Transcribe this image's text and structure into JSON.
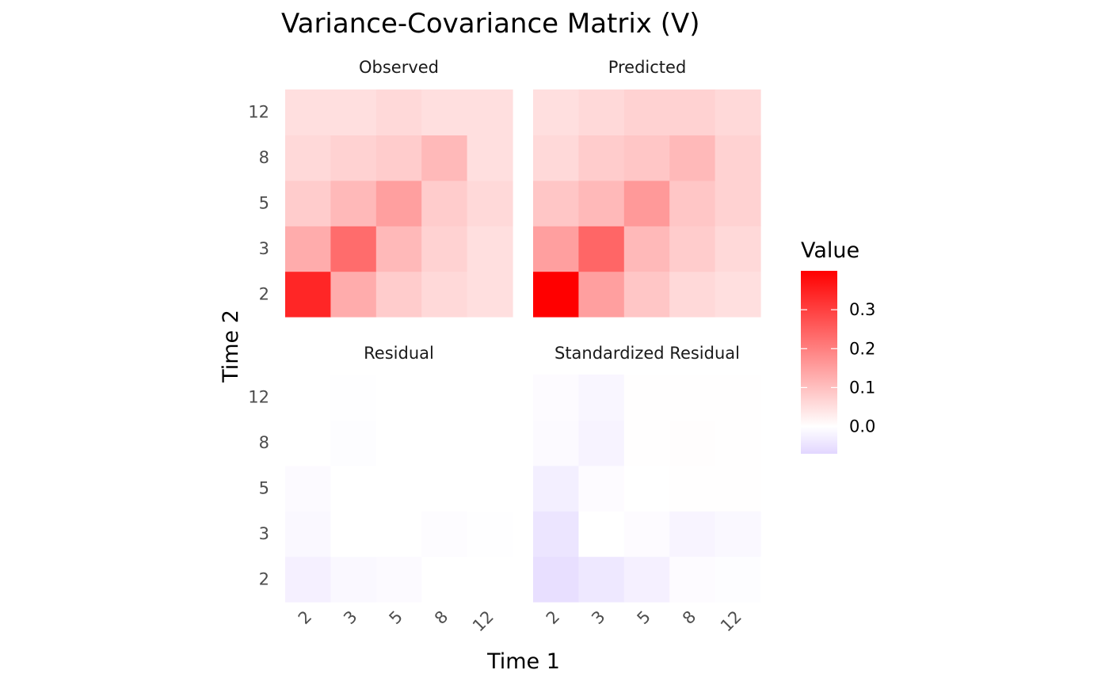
{
  "chart_data": {
    "type": "heatmap",
    "title": "Variance-Covariance Matrix (V)",
    "xlabel": "Time 1",
    "ylabel": "Time 2",
    "categories": [
      "2",
      "3",
      "5",
      "8",
      "12"
    ],
    "legend": {
      "title": "Value",
      "placement": "right",
      "range": [
        -0.07,
        0.4
      ],
      "ticks": [
        "0.0",
        "0.1",
        "0.2",
        "0.3"
      ],
      "tick_values": [
        0.0,
        0.1,
        0.2,
        0.3
      ]
    },
    "colors": {
      "low": "#e2d6ff",
      "mid": "#ffffff",
      "high": "#ff0000"
    },
    "panels": [
      {
        "name": "Observed",
        "values": [
          [
            0.34,
            0.13,
            0.08,
            0.06,
            0.05
          ],
          [
            0.13,
            0.23,
            0.11,
            0.07,
            0.05
          ],
          [
            0.08,
            0.11,
            0.15,
            0.08,
            0.06
          ],
          [
            0.06,
            0.07,
            0.08,
            0.11,
            0.05
          ],
          [
            0.05,
            0.05,
            0.06,
            0.05,
            0.05
          ]
        ]
      },
      {
        "name": "Predicted",
        "values": [
          [
            0.4,
            0.15,
            0.09,
            0.06,
            0.05
          ],
          [
            0.15,
            0.24,
            0.11,
            0.08,
            0.06
          ],
          [
            0.09,
            0.11,
            0.16,
            0.09,
            0.07
          ],
          [
            0.06,
            0.08,
            0.09,
            0.11,
            0.07
          ],
          [
            0.05,
            0.06,
            0.07,
            0.07,
            0.06
          ]
        ]
      },
      {
        "name": "Residual",
        "values": [
          [
            -0.025,
            -0.012,
            -0.008,
            0.0,
            0.0
          ],
          [
            -0.012,
            0.0,
            0.0,
            -0.005,
            -0.002
          ],
          [
            -0.008,
            0.0,
            0.0,
            0.0,
            0.0
          ],
          [
            0.0,
            -0.004,
            0.0,
            0.0,
            0.0
          ],
          [
            0.0,
            -0.002,
            0.0,
            0.0,
            0.0
          ]
        ]
      },
      {
        "name": "Standardized Residual",
        "values": [
          [
            -0.055,
            -0.04,
            -0.025,
            -0.006,
            -0.004
          ],
          [
            -0.045,
            0.0,
            -0.006,
            -0.018,
            -0.012
          ],
          [
            -0.028,
            -0.006,
            0.0,
            0.002,
            0.001
          ],
          [
            -0.008,
            -0.02,
            0.002,
            0.003,
            0.002
          ],
          [
            -0.006,
            -0.015,
            0.001,
            0.002,
            0.002
          ]
        ]
      }
    ]
  }
}
